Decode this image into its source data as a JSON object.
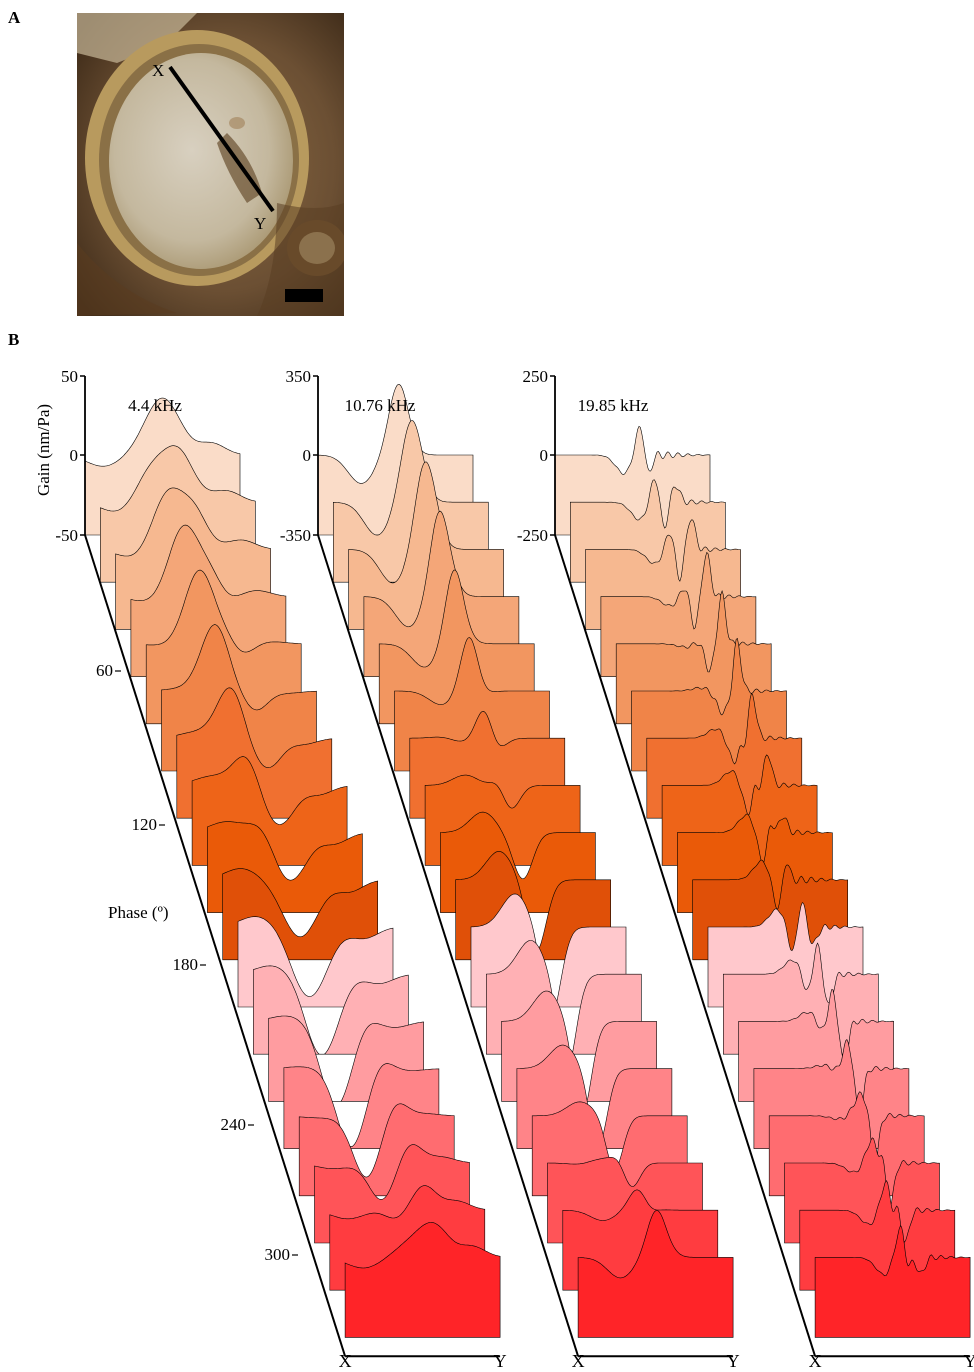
{
  "panel_a": {
    "label": "A",
    "marker_x": "X",
    "marker_y": "Y"
  },
  "panel_b": {
    "label": "B",
    "y_axis_title": "Gain (nm/Pa)",
    "phase_axis_title": "Phase (º)",
    "phase_ticks": [
      "60",
      "120",
      "180",
      "240",
      "300"
    ],
    "x_end_labels": [
      "X",
      "Y"
    ]
  },
  "chart_data": {
    "type": "area",
    "description_series": "waterfall of gain profiles along line X–Y, one trace per phase step",
    "phase_steps": 18,
    "phase_tick_values": [
      60,
      120,
      180,
      240,
      300
    ],
    "colors": {
      "phase_0_150": [
        "#fadcc8",
        "#f8c8a8",
        "#f6b890",
        "#f4a678",
        "#f29660",
        "#f08448",
        "#f07030",
        "#ee6418",
        "#ea5a08",
        "#e05008"
      ],
      "phase_150_360": [
        "#ffc8cc",
        "#ffb0b4",
        "#ff9ca0",
        "#ff8488",
        "#ff6c70",
        "#ff5458",
        "#ff3c40",
        "#ff2428",
        "#ff0c10",
        "#d80000"
      ]
    },
    "panels": [
      {
        "frequency": "4.4 kHz",
        "y_ticks": [
          "50",
          "0",
          "-50"
        ]
      },
      {
        "frequency": "10.76 kHz",
        "y_ticks": [
          "350",
          "0",
          "-350"
        ]
      },
      {
        "frequency": "19.85 kHz",
        "y_ticks": [
          "250",
          "0",
          "-250"
        ]
      }
    ]
  }
}
